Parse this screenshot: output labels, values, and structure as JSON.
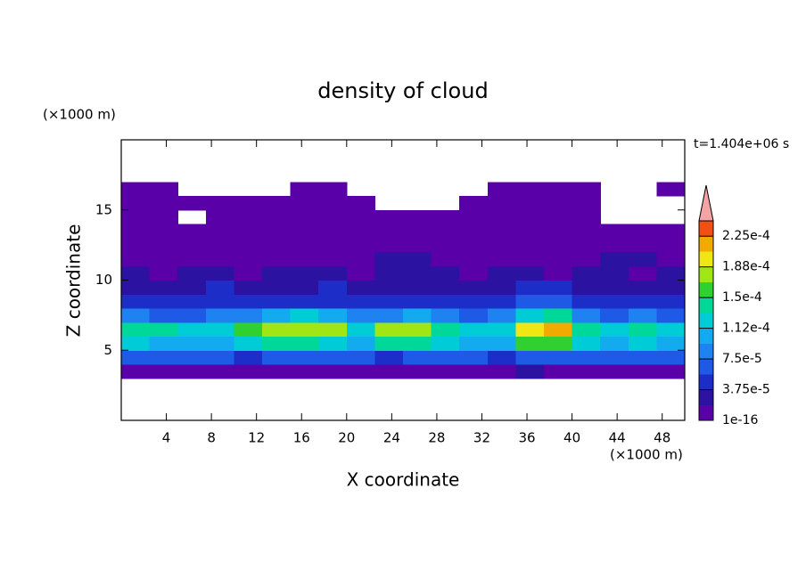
{
  "chart_data": {
    "type": "contour",
    "title": "density of cloud",
    "annotation": "t=1.404e+06 s",
    "xlabel": "X coordinate",
    "ylabel": "Z coordinate",
    "x_unit": "(×1000 m)",
    "y_unit": "(×1000 m)",
    "xlim": [
      0,
      50
    ],
    "ylim": [
      0,
      20
    ],
    "xticks": [
      4,
      8,
      12,
      16,
      20,
      24,
      28,
      32,
      36,
      40,
      44,
      48
    ],
    "yticks": [
      5,
      10,
      15
    ],
    "x": [
      1.25,
      3.75,
      6.25,
      8.75,
      11.25,
      13.75,
      16.25,
      18.75,
      21.25,
      23.75,
      26.25,
      28.75,
      31.25,
      33.75,
      36.25,
      38.75,
      41.25,
      43.75,
      46.25,
      48.75
    ],
    "z": [
      3.5,
      4.5,
      5.5,
      6.5,
      7.5,
      8.5,
      9.5,
      10.5,
      11.5,
      12.5,
      13.5,
      14.5,
      15.5,
      16.5
    ],
    "values": [
      [
        1.4e-05,
        1.6e-05,
        1.2e-05,
        1.5e-05,
        1.7e-05,
        1.3e-05,
        1.5e-05,
        1.6e-05,
        1.4e-05,
        1.8e-05,
        1.5e-05,
        1.3e-05,
        1.6e-05,
        1.7e-05,
        2e-05,
        1.5e-05,
        1.4e-05,
        1.6e-05,
        1.3e-05,
        1.5e-05
      ],
      [
        6.2e-05,
        5.8e-05,
        6.5e-05,
        6e-05,
        5.6e-05,
        6.8e-05,
        6.3e-05,
        5.9e-05,
        6.6e-05,
        5.4e-05,
        6.1e-05,
        6.4e-05,
        5.7e-05,
        4.8e-05,
        6e-05,
        6.7e-05,
        6.9e-05,
        6.2e-05,
        5.8e-05,
        6.3e-05
      ],
      [
        0.000115,
        0.000105,
        0.00011,
        0.0001,
        0.00012,
        0.00014,
        0.000145,
        0.00013,
        0.000105,
        0.000135,
        0.00014,
        0.00012,
        0.0001,
        0.00011,
        0.00015,
        0.00016,
        0.00013,
        0.000105,
        0.000115,
        0.00011
      ],
      [
        0.00014,
        0.000135,
        0.00012,
        0.000115,
        0.000155,
        0.000175,
        0.00018,
        0.00017,
        0.000115,
        0.00017,
        0.000175,
        0.000145,
        0.00012,
        0.00013,
        0.000205,
        0.000215,
        0.00014,
        0.000125,
        0.000145,
        0.00013
      ],
      [
        7.5e-05,
        7e-05,
        6.5e-05,
        8e-05,
        9e-05,
        0.00011,
        0.000115,
        9.5e-05,
        8e-05,
        9e-05,
        9.5e-05,
        7.5e-05,
        7e-05,
        8.5e-05,
        0.00012,
        0.000135,
        9e-05,
        7e-05,
        7.5e-05,
        7e-05
      ],
      [
        4.5e-05,
        4e-05,
        4.2e-05,
        5e-05,
        4.6e-05,
        5.2e-05,
        5.5e-05,
        4.8e-05,
        4.1e-05,
        4.9e-05,
        5.3e-05,
        4.4e-05,
        4e-05,
        4.7e-05,
        5.8e-05,
        6e-05,
        4.5e-05,
        4.1e-05,
        4.3e-05,
        4.6e-05
      ],
      [
        3e-05,
        2.6e-05,
        3.3e-05,
        3.8e-05,
        3.1e-05,
        2.8e-05,
        3.5e-05,
        3.9e-05,
        3.2e-05,
        2.9e-05,
        3.6e-05,
        3.4e-05,
        2.7e-05,
        3e-05,
        3.8e-05,
        4e-05,
        3.1e-05,
        2.5e-05,
        3.3e-05,
        3e-05
      ],
      [
        2.1e-05,
        1.6e-05,
        2.4e-05,
        2e-05,
        1.5e-05,
        2.2e-05,
        2.5e-05,
        1.9e-05,
        1.4e-05,
        2.3e-05,
        2.6e-05,
        2e-05,
        1.7e-05,
        2.2e-05,
        2.4e-05,
        1.8e-05,
        2.1e-05,
        2.3e-05,
        1.6e-05,
        2e-05
      ],
      [
        1.3e-05,
        1e-05,
        1.2e-05,
        9e-06,
        1.1e-05,
        1.4e-05,
        1.2e-05,
        1e-05,
        1.5e-05,
        2e-05,
        1.9e-05,
        1.3e-05,
        1.1e-05,
        1.2e-05,
        1e-05,
        1.3e-05,
        1.4e-05,
        1.9e-05,
        2.1e-05,
        1.6e-05
      ],
      [
        8e-06,
        7e-06,
        9e-06,
        8e-06,
        6e-06,
        8e-06,
        9e-06,
        7e-06,
        8e-06,
        1e-05,
        9e-06,
        8e-06,
        7e-06,
        8e-06,
        9e-06,
        8e-06,
        7e-06,
        9e-06,
        8e-06,
        7e-06
      ],
      [
        5e-06,
        6e-06,
        5e-06,
        4e-06,
        5e-06,
        3e-06,
        5e-06,
        6e-06,
        5e-06,
        6e-06,
        5e-06,
        4e-06,
        5e-06,
        6e-06,
        5e-06,
        4e-06,
        5e-06,
        6e-06,
        5e-06,
        5e-06
      ],
      [
        4e-06,
        3e-06,
        null,
        4e-06,
        3e-06,
        4e-06,
        4e-06,
        3e-06,
        4e-06,
        4e-06,
        3e-06,
        4e-06,
        4e-06,
        3e-06,
        4e-06,
        4e-06,
        3e-06,
        null,
        null,
        null
      ],
      [
        3e-06,
        3e-06,
        2e-06,
        3e-06,
        3e-06,
        3e-06,
        3e-06,
        2e-06,
        3e-06,
        null,
        null,
        null,
        3e-06,
        3e-06,
        3e-06,
        3e-06,
        2e-06,
        null,
        null,
        null
      ],
      [
        2e-06,
        2e-06,
        null,
        null,
        null,
        null,
        2e-06,
        2e-06,
        null,
        null,
        null,
        null,
        null,
        2e-06,
        2e-06,
        2e-06,
        2e-06,
        null,
        null,
        2e-06
      ]
    ],
    "colorbar": {
      "lim": [
        1e-16,
        0.00024375
      ],
      "levels": [
        1e-16,
        1.875e-05,
        3.75e-05,
        5.625e-05,
        7.5e-05,
        9.375e-05,
        0.0001125,
        0.00013125,
        0.00015,
        0.00016875,
        0.0001875,
        0.00020625,
        0.000225
      ],
      "colors": [
        "#5a00a8",
        "#2c12a0",
        "#1c2dc8",
        "#1e5ae6",
        "#1e82f0",
        "#14aaf0",
        "#00ccd8",
        "#00d89a",
        "#30d030",
        "#a0e614",
        "#f0e614",
        "#f0aa00",
        "#f05014"
      ],
      "extend_color": "#f4a4a4",
      "ticks": [
        {
          "value": 1e-16,
          "label": "1e-16"
        },
        {
          "value": 3.75e-05,
          "label": "3.75e-5"
        },
        {
          "value": 7.5e-05,
          "label": "7.5e-5"
        },
        {
          "value": 0.0001125,
          "label": "1.12e-4"
        },
        {
          "value": 0.00015,
          "label": "1.5e-4"
        },
        {
          "value": 0.0001875,
          "label": "1.88e-4"
        },
        {
          "value": 0.000225,
          "label": "2.25e-4"
        }
      ]
    }
  }
}
